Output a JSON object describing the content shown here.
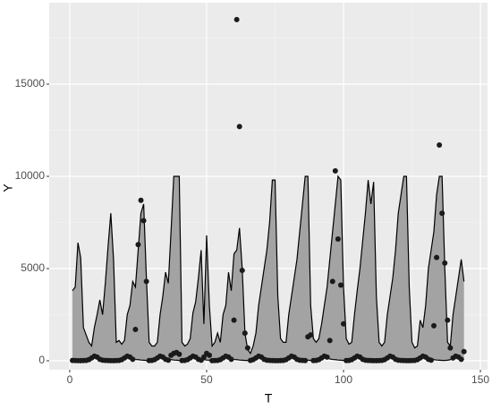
{
  "chart_data": {
    "type": "ribbon",
    "x_label": "T",
    "y_label": "Y",
    "x": [
      1,
      2,
      3,
      4,
      5,
      6,
      7,
      8,
      9,
      10,
      11,
      12,
      13,
      14,
      15,
      16,
      17,
      18,
      19,
      20,
      21,
      22,
      23,
      24,
      25,
      26,
      27,
      28,
      29,
      30,
      31,
      32,
      33,
      34,
      35,
      36,
      37,
      38,
      39,
      40,
      41,
      42,
      43,
      44,
      45,
      46,
      47,
      48,
      49,
      50,
      51,
      52,
      53,
      54,
      55,
      56,
      57,
      58,
      59,
      60,
      61,
      62,
      63,
      64,
      65,
      66,
      67,
      68,
      69,
      70,
      71,
      72,
      73,
      74,
      75,
      76,
      77,
      78,
      79,
      80,
      81,
      82,
      83,
      84,
      85,
      86,
      87,
      88,
      89,
      90,
      91,
      92,
      93,
      94,
      95,
      96,
      97,
      98,
      99,
      100,
      101,
      102,
      103,
      104,
      105,
      106,
      107,
      108,
      109,
      110,
      111,
      112,
      113,
      114,
      115,
      116,
      117,
      118,
      119,
      120,
      121,
      122,
      123,
      124,
      125,
      126,
      127,
      128,
      129,
      130,
      131,
      132,
      133,
      134,
      135,
      136,
      137,
      138,
      139,
      140,
      141,
      142,
      143,
      144
    ],
    "upper": [
      3800,
      4000,
      6400,
      5600,
      1800,
      1400,
      1000,
      800,
      1800,
      2500,
      3300,
      2500,
      4200,
      6200,
      8000,
      5500,
      1000,
      1100,
      900,
      1100,
      2500,
      3000,
      4300,
      4000,
      6000,
      8000,
      8500,
      4500,
      1000,
      800,
      800,
      1000,
      2500,
      3500,
      4800,
      4200,
      7000,
      10000,
      10000,
      10000,
      1000,
      800,
      900,
      1200,
      2600,
      3200,
      4500,
      6000,
      2000,
      6800,
      3000,
      800,
      1000,
      1500,
      1000,
      2500,
      3000,
      4800,
      3800,
      5800,
      6000,
      7200,
      5000,
      1500,
      600,
      400,
      800,
      1500,
      3000,
      4000,
      5000,
      6000,
      7500,
      9800,
      9800,
      3500,
      1200,
      1000,
      1000,
      2500,
      3500,
      4500,
      5500,
      7000,
      8500,
      10000,
      10000,
      3000,
      1200,
      1000,
      1200,
      2000,
      3000,
      4000,
      5500,
      7000,
      8500,
      10000,
      9800,
      4000,
      1200,
      900,
      1000,
      2500,
      3800,
      5000,
      6500,
      8000,
      9800,
      8500,
      9700,
      3500,
      1000,
      800,
      1000,
      2500,
      3500,
      4500,
      6000,
      8000,
      9000,
      10000,
      10000,
      4000,
      1000,
      700,
      800,
      2200,
      1800,
      3000,
      5000,
      6000,
      7000,
      9000,
      10000,
      10000,
      5000,
      1000,
      800,
      2500,
      3500,
      4500,
      5500,
      4300
    ],
    "lower": [
      60,
      40,
      30,
      20,
      20,
      30,
      60,
      120,
      180,
      160,
      100,
      70,
      60,
      40,
      30,
      20,
      20,
      30,
      60,
      120,
      180,
      160,
      100,
      70,
      60,
      40,
      30,
      20,
      20,
      30,
      60,
      120,
      180,
      160,
      100,
      70,
      60,
      40,
      30,
      20,
      20,
      30,
      60,
      120,
      180,
      160,
      100,
      70,
      60,
      40,
      30,
      20,
      20,
      30,
      60,
      120,
      180,
      160,
      100,
      70,
      60,
      40,
      30,
      20,
      20,
      30,
      60,
      120,
      180,
      160,
      100,
      70,
      60,
      40,
      30,
      20,
      20,
      30,
      60,
      120,
      180,
      160,
      100,
      70,
      60,
      40,
      30,
      20,
      20,
      30,
      60,
      120,
      180,
      160,
      100,
      70,
      60,
      40,
      30,
      20,
      20,
      30,
      60,
      120,
      180,
      160,
      100,
      70,
      60,
      40,
      30,
      20,
      20,
      30,
      60,
      120,
      180,
      160,
      100,
      70,
      60,
      40,
      30,
      20,
      20,
      30,
      60,
      120,
      180,
      160,
      100,
      70,
      60,
      40,
      30,
      20,
      20,
      30,
      60,
      120,
      180,
      160,
      100,
      70
    ],
    "points": [
      20,
      10,
      5,
      5,
      10,
      20,
      60,
      150,
      250,
      200,
      80,
      30,
      20,
      10,
      5,
      5,
      10,
      20,
      60,
      150,
      250,
      200,
      80,
      1700,
      6300,
      8700,
      7600,
      4300,
      10,
      20,
      60,
      150,
      250,
      200,
      80,
      30,
      300,
      400,
      450,
      350,
      10,
      20,
      60,
      150,
      250,
      200,
      80,
      30,
      200,
      400,
      300,
      5,
      10,
      20,
      60,
      150,
      250,
      200,
      80,
      2200,
      18500,
      12700,
      4900,
      1500,
      700,
      20,
      60,
      150,
      250,
      200,
      80,
      30,
      20,
      10,
      5,
      5,
      10,
      20,
      60,
      150,
      250,
      200,
      80,
      30,
      20,
      10,
      1300,
      1400,
      10,
      20,
      60,
      150,
      250,
      200,
      1100,
      4300,
      10300,
      6600,
      4100,
      2000,
      10,
      20,
      60,
      150,
      250,
      200,
      80,
      30,
      20,
      10,
      5,
      5,
      10,
      20,
      60,
      150,
      250,
      200,
      80,
      30,
      20,
      10,
      5,
      5,
      10,
      20,
      60,
      150,
      250,
      200,
      80,
      30,
      1900,
      5600,
      11700,
      8000,
      5300,
      2200,
      700,
      150,
      250,
      200,
      80,
      500
    ],
    "fill_color": "#a3a3a3",
    "line_color": "#000000",
    "point_color": "#1a1a1a",
    "xlim": [
      -7.5,
      152.6
    ],
    "ylim": [
      -485,
      19417
    ],
    "xticks": [
      0,
      50,
      100,
      150
    ],
    "yticks": [
      0,
      5000,
      10000,
      15000
    ],
    "xminor": [
      25,
      75,
      125
    ],
    "yminor": [
      2500,
      7500,
      12500,
      17500
    ],
    "grid": true
  }
}
